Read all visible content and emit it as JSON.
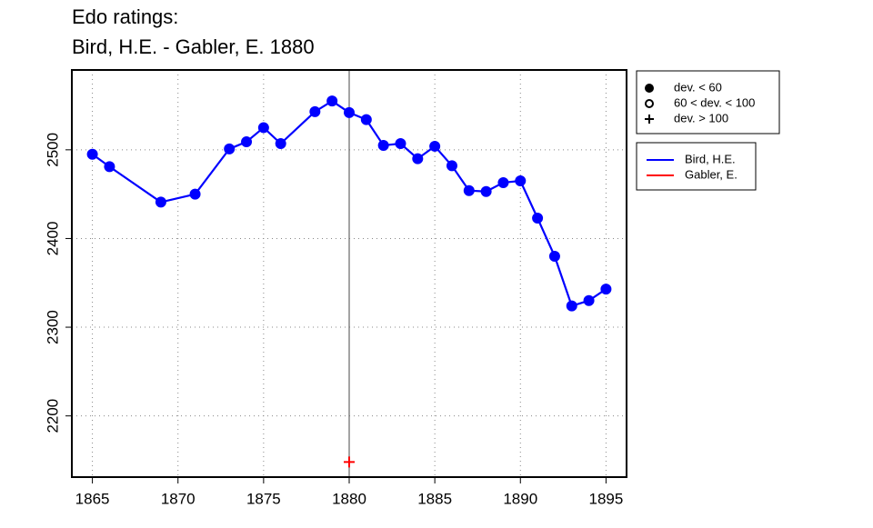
{
  "chart_data": {
    "type": "line",
    "title": [
      "Edo ratings:",
      "Bird, H.E. - Gabler, E. 1880"
    ],
    "x_kind": "numeric",
    "series": [
      {
        "name": "Bird, H.E.",
        "color": "#0000ff",
        "marker": "filled-circle",
        "x": [
          1865,
          1866,
          1869,
          1871,
          1873,
          1874,
          1875,
          1876,
          1878,
          1879,
          1880,
          1881,
          1882,
          1883,
          1884,
          1885,
          1886,
          1887,
          1888,
          1889,
          1890,
          1891,
          1892,
          1893,
          1894,
          1895
        ],
        "values": [
          2495,
          2481,
          2441,
          2450,
          2501,
          2509,
          2525,
          2507,
          2543,
          2555,
          2542,
          2534,
          2505,
          2507,
          2490,
          2504,
          2482,
          2454,
          2453,
          2463,
          2465,
          2423,
          2380,
          2324,
          2330,
          2343
        ]
      },
      {
        "name": "Gabler, E.",
        "color": "#ff0000",
        "marker": "plus",
        "x": [
          1880
        ],
        "values": [
          2148
        ]
      }
    ],
    "vline": 1880,
    "xlim": [
      1863.8,
      1896.2
    ],
    "xticks": [
      1865,
      1870,
      1875,
      1880,
      1885,
      1890,
      1895
    ],
    "ylim": [
      2131,
      2590
    ],
    "yticks": [
      2200,
      2300,
      2400,
      2500
    ],
    "grid": true,
    "marker_legend": [
      {
        "label": "dev. < 60",
        "symbol": "filled-circle"
      },
      {
        "label": "60 < dev. < 100",
        "symbol": "open-circle"
      },
      {
        "label": "dev. > 100",
        "symbol": "plus"
      }
    ]
  }
}
